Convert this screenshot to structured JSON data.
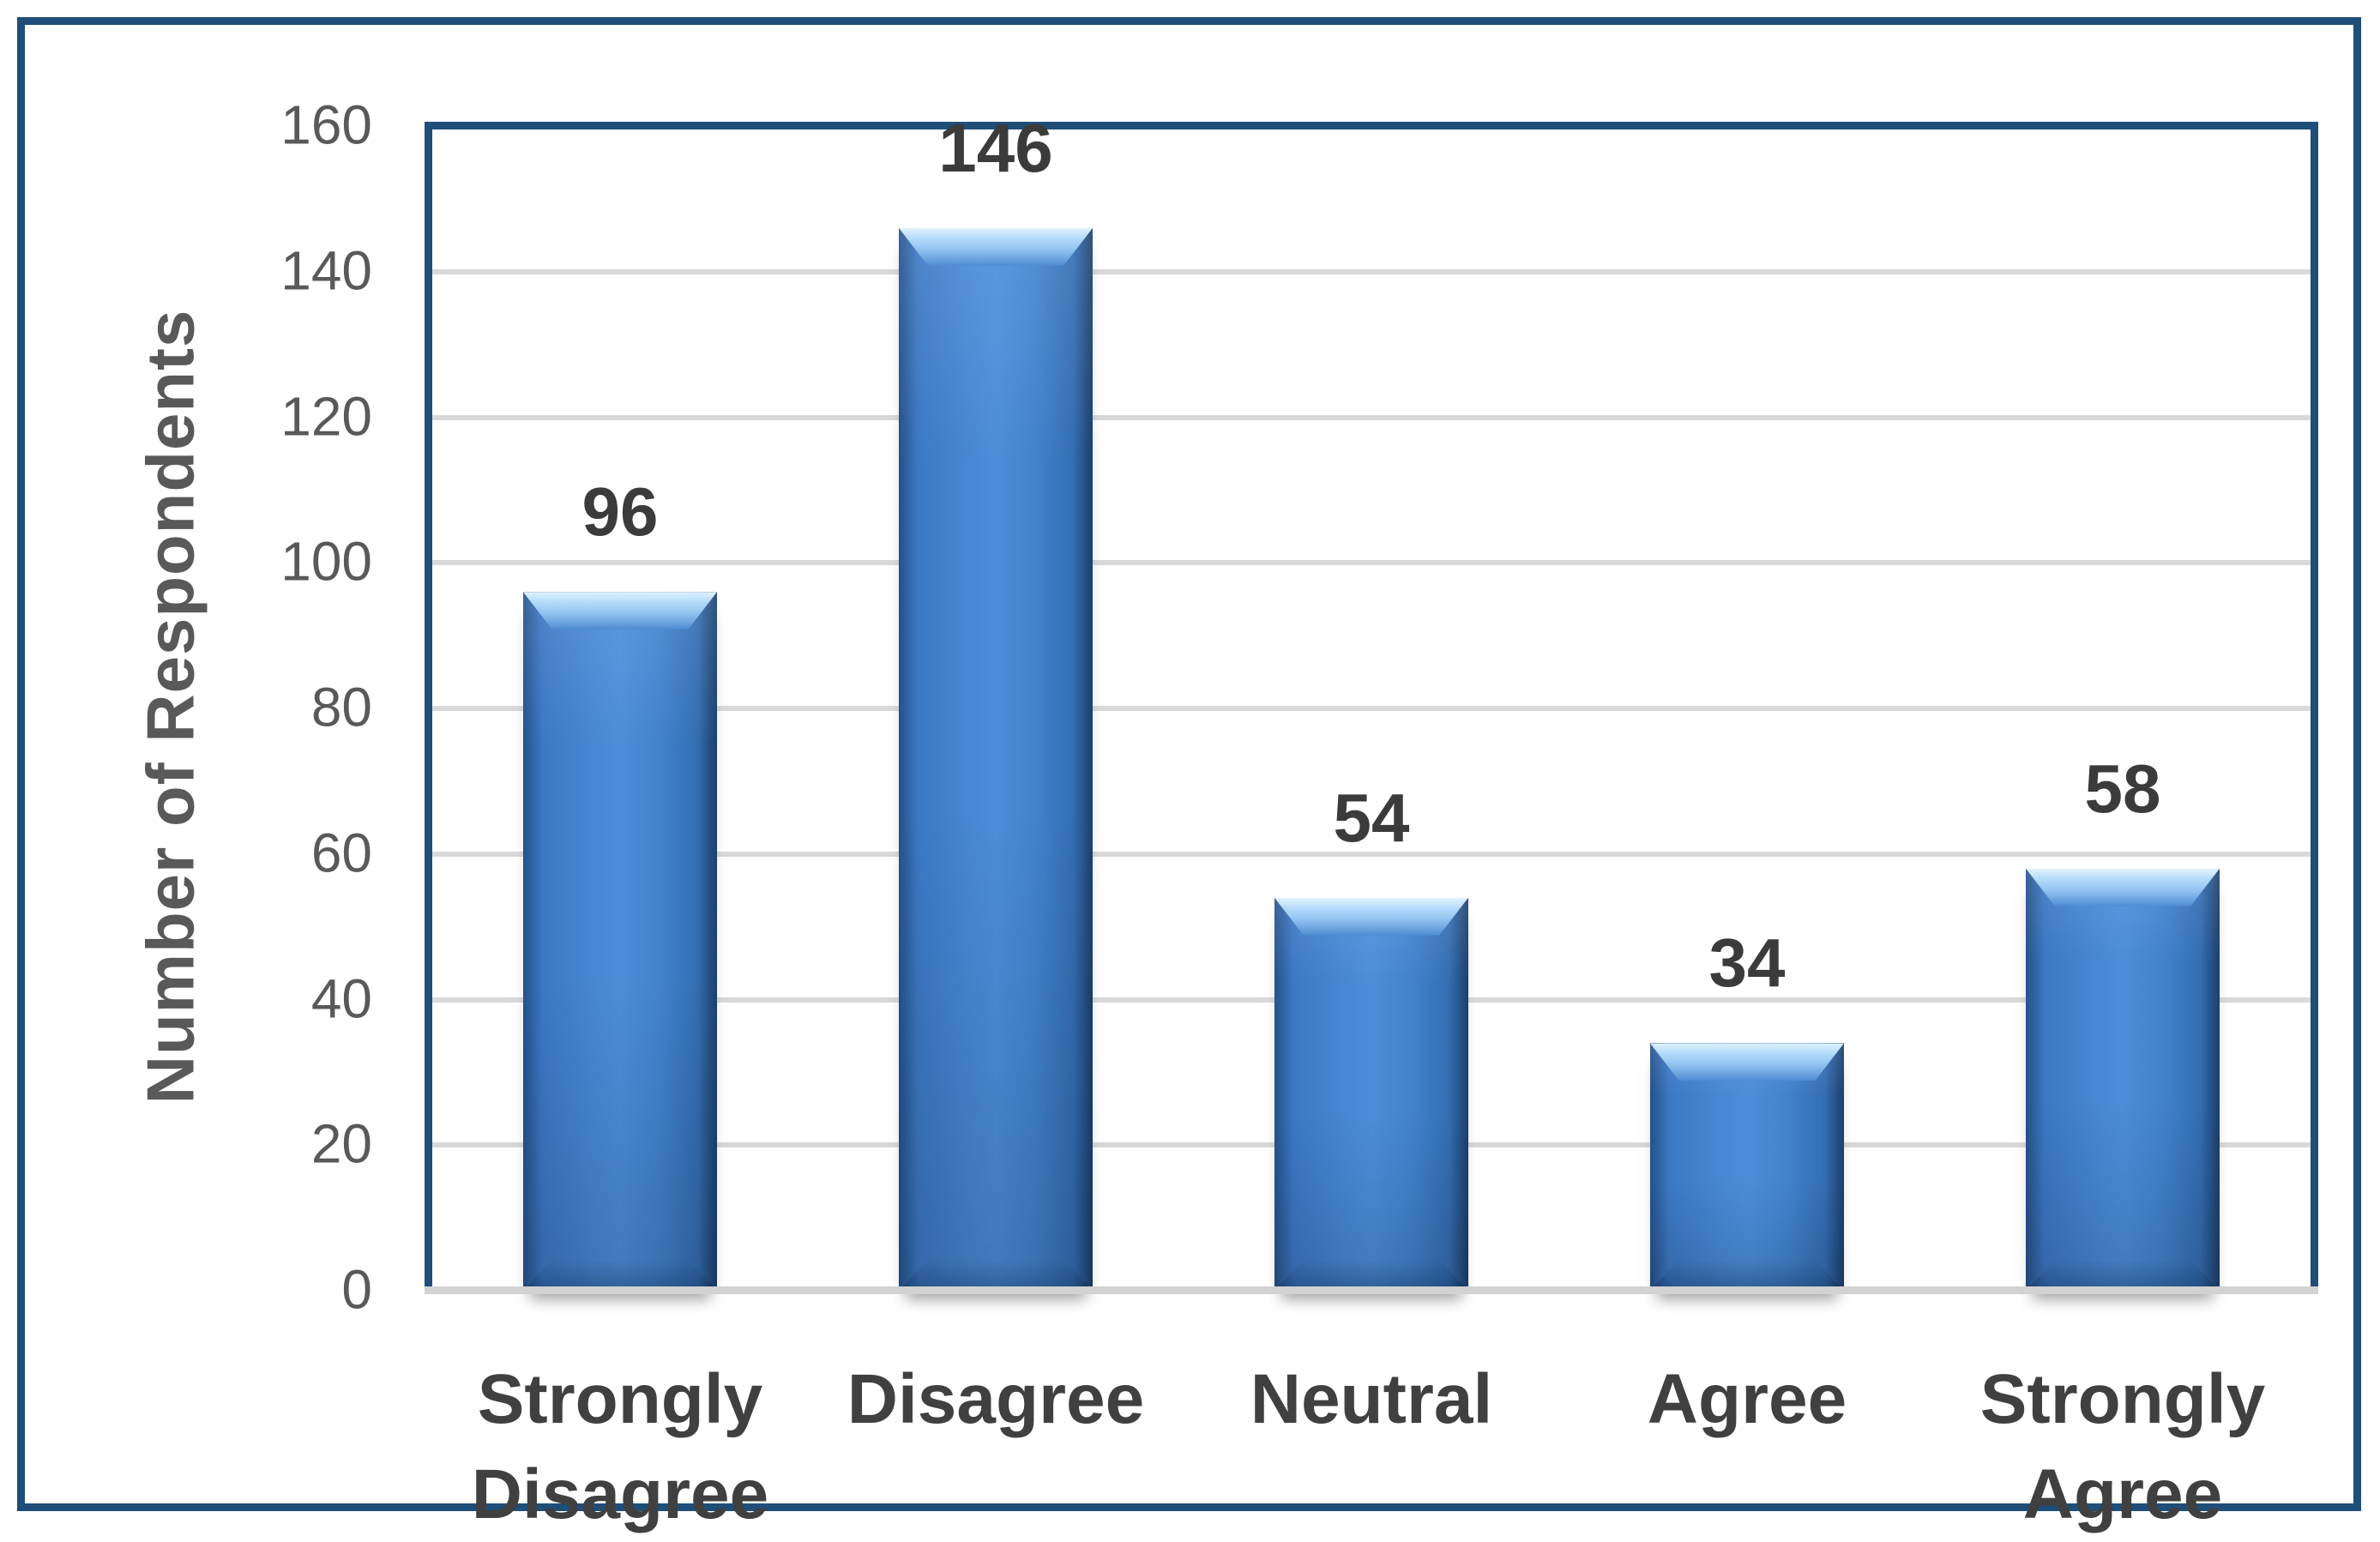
{
  "chart_data": {
    "type": "bar",
    "title": "",
    "xlabel": "",
    "ylabel": "Number of Respondents",
    "categories": [
      "Strongly Disagree",
      "Disagree",
      "Neutral",
      "Agree",
      "Strongly Agree"
    ],
    "category_display": [
      "Strongly\nDisagree",
      "Disagree",
      "Neutral",
      "Agree",
      "Strongly\nAgree"
    ],
    "values": [
      96,
      146,
      54,
      34,
      58
    ],
    "data_labels": [
      "96",
      "146",
      "54",
      "34",
      "58"
    ],
    "ylim": [
      0,
      160
    ],
    "ytick_step": 20,
    "yticks": [
      0,
      20,
      40,
      60,
      80,
      100,
      120,
      140,
      160
    ],
    "grid": "horizontal",
    "legend": "none",
    "colors": {
      "bar_fill": "#4787D3",
      "bar_fill_dark_edge": "#24518A",
      "bar_bevel_highlight": "#B7DDFA",
      "frame_border": "#1F4E79",
      "plot_border": "#1F4E79",
      "gridline": "#D9D9D9",
      "axis_line": "#D2D2D2",
      "tick_text": "#595959",
      "ylabel_text": "#595959",
      "category_text": "#404040",
      "data_label_text": "#3B3B3B",
      "background": "#FFFFFF"
    }
  }
}
